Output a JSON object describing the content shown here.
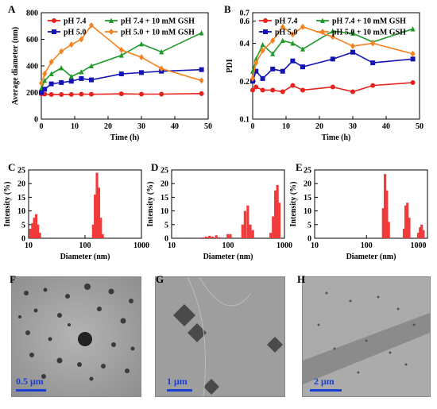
{
  "panels": {
    "A": "A",
    "B": "B",
    "C": "C",
    "D": "D",
    "E": "E",
    "F": "F",
    "G": "G",
    "H": "H"
  },
  "chart_data": [
    {
      "id": "A",
      "type": "line",
      "xlabel": "Time (h)",
      "ylabel": "Average diameter (nm)",
      "xlim": [
        0,
        50
      ],
      "ylim": [
        0,
        800
      ],
      "xticks": [
        0,
        10,
        20,
        30,
        40,
        50
      ],
      "yticks": [
        0,
        200,
        400,
        600,
        800
      ],
      "legend": "top",
      "series": [
        {
          "name": "pH 7.4",
          "color": "#e8221c",
          "marker": "circle",
          "x": [
            0,
            1,
            3,
            6,
            9,
            12,
            15,
            24,
            30,
            36,
            48
          ],
          "y": [
            190,
            188,
            185,
            185,
            186,
            188,
            187,
            190,
            188,
            188,
            192
          ]
        },
        {
          "name": "pH 7.4 + 10 mM GSH",
          "color": "#1f9a2a",
          "marker": "triangle",
          "x": [
            0,
            1,
            3,
            6,
            9,
            12,
            15,
            24,
            30,
            36,
            48
          ],
          "y": [
            230,
            290,
            340,
            385,
            320,
            355,
            400,
            480,
            565,
            505,
            648
          ]
        },
        {
          "name": "pH 5.0",
          "color": "#1414b4",
          "marker": "square",
          "x": [
            0,
            1,
            3,
            6,
            9,
            12,
            15,
            24,
            30,
            36,
            48
          ],
          "y": [
            200,
            225,
            265,
            275,
            285,
            305,
            295,
            340,
            350,
            360,
            372
          ]
        },
        {
          "name": "pH 5.0 + 10 mM GSH",
          "color": "#f58220",
          "marker": "diamond",
          "x": [
            0,
            1,
            3,
            6,
            9,
            12,
            15,
            24,
            30,
            36,
            48
          ],
          "y": [
            270,
            340,
            430,
            510,
            560,
            600,
            705,
            520,
            465,
            380,
            290
          ]
        }
      ]
    },
    {
      "id": "B",
      "type": "line",
      "xlabel": "Time (h)",
      "ylabel": "PDI",
      "xlim": [
        0,
        50
      ],
      "ylim": [
        0.1,
        0.7
      ],
      "yscale": "log",
      "xticks": [
        0,
        10,
        20,
        30,
        40,
        50
      ],
      "yticks": [
        0.1,
        0.2,
        0.4,
        0.6,
        0.7
      ],
      "legend": "top",
      "series": [
        {
          "name": "pH 7.4",
          "color": "#e8221c",
          "marker": "circle",
          "x": [
            0,
            1,
            3,
            6,
            9,
            12,
            15,
            24,
            30,
            36,
            48
          ],
          "y": [
            0.17,
            0.18,
            0.17,
            0.17,
            0.165,
            0.185,
            0.17,
            0.18,
            0.165,
            0.185,
            0.195
          ]
        },
        {
          "name": "pH 7.4 + 10 mM GSH",
          "color": "#1f9a2a",
          "marker": "triangle",
          "x": [
            0,
            1,
            3,
            6,
            9,
            12,
            15,
            24,
            30,
            36,
            48
          ],
          "y": [
            0.24,
            0.3,
            0.39,
            0.33,
            0.42,
            0.4,
            0.36,
            0.5,
            0.48,
            0.41,
            0.52
          ]
        },
        {
          "name": "pH 5.0",
          "color": "#1414b4",
          "marker": "square",
          "x": [
            0,
            1,
            3,
            6,
            9,
            12,
            15,
            24,
            30,
            36,
            48
          ],
          "y": [
            0.2,
            0.24,
            0.21,
            0.25,
            0.24,
            0.29,
            0.26,
            0.3,
            0.34,
            0.28,
            0.3
          ]
        },
        {
          "name": "pH 5.0 + 10 mM GSH",
          "color": "#f58220",
          "marker": "diamond",
          "x": [
            0,
            1,
            3,
            6,
            9,
            12,
            15,
            24,
            30,
            36,
            48
          ],
          "y": [
            0.21,
            0.28,
            0.35,
            0.42,
            0.54,
            0.47,
            0.54,
            0.45,
            0.38,
            0.4,
            0.33
          ]
        }
      ]
    },
    {
      "id": "C",
      "type": "bar",
      "xlabel": "Diameter (nm)",
      "ylabel": "Intensity (%)",
      "xscale": "log",
      "xlim": [
        10,
        1000
      ],
      "ylim": [
        0,
        25
      ],
      "xticks": [
        10,
        100,
        1000
      ],
      "yticks": [
        0,
        5,
        10,
        15,
        20,
        25
      ],
      "color": "#f23a3a",
      "bars": [
        {
          "x": 10.8,
          "y": 3.5
        },
        {
          "x": 11.7,
          "y": 5.5
        },
        {
          "x": 12.6,
          "y": 7.5
        },
        {
          "x": 13.6,
          "y": 8.8
        },
        {
          "x": 14.6,
          "y": 5.0
        },
        {
          "x": 15.8,
          "y": 2.0
        },
        {
          "x": 140,
          "y": 5.0
        },
        {
          "x": 151,
          "y": 16.0
        },
        {
          "x": 163,
          "y": 24.0
        },
        {
          "x": 176,
          "y": 18.5
        },
        {
          "x": 190,
          "y": 7.5
        },
        {
          "x": 205,
          "y": 1.5
        }
      ]
    },
    {
      "id": "D",
      "type": "bar",
      "xlabel": "Diameter (nm)",
      "ylabel": "Intensity (%)",
      "xscale": "log",
      "xlim": [
        10,
        1000
      ],
      "ylim": [
        0,
        25
      ],
      "xticks": [
        10,
        100,
        1000
      ],
      "yticks": [
        0,
        5,
        10,
        15,
        20,
        25
      ],
      "color": "#f23a3a",
      "bars": [
        {
          "x": 36,
          "y": 0.3
        },
        {
          "x": 41,
          "y": 0.6
        },
        {
          "x": 47,
          "y": 0.9
        },
        {
          "x": 53,
          "y": 0.6
        },
        {
          "x": 62,
          "y": 1.1
        },
        {
          "x": 70,
          "y": 0.4
        },
        {
          "x": 99,
          "y": 1.5
        },
        {
          "x": 110,
          "y": 1.5
        },
        {
          "x": 181,
          "y": 5.0
        },
        {
          "x": 200,
          "y": 10.0
        },
        {
          "x": 224,
          "y": 12.0
        },
        {
          "x": 248,
          "y": 5.0
        },
        {
          "x": 275,
          "y": 3.0
        },
        {
          "x": 570,
          "y": 2.0
        },
        {
          "x": 630,
          "y": 8.0
        },
        {
          "x": 690,
          "y": 17.5
        },
        {
          "x": 750,
          "y": 19.5
        },
        {
          "x": 810,
          "y": 13.0
        }
      ]
    },
    {
      "id": "E",
      "type": "bar",
      "xlabel": "Diameter (nm)",
      "ylabel": "Intensity (%)",
      "xscale": "log",
      "xlim": [
        10,
        1500
      ],
      "ylim": [
        0,
        25
      ],
      "xticks": [
        10,
        100,
        1000
      ],
      "yticks": [
        0,
        5,
        10,
        15,
        20,
        25
      ],
      "color": "#f23a3a",
      "bars": [
        {
          "x": 210,
          "y": 11.0
        },
        {
          "x": 228,
          "y": 23.5
        },
        {
          "x": 247,
          "y": 17.5
        },
        {
          "x": 268,
          "y": 6.0
        },
        {
          "x": 530,
          "y": 3.5
        },
        {
          "x": 570,
          "y": 12.0
        },
        {
          "x": 615,
          "y": 13.0
        },
        {
          "x": 665,
          "y": 7.5
        },
        {
          "x": 1000,
          "y": 2.0
        },
        {
          "x": 1080,
          "y": 4.0
        },
        {
          "x": 1160,
          "y": 5.0
        },
        {
          "x": 1250,
          "y": 3.0
        }
      ]
    }
  ],
  "micrographs": [
    {
      "id": "F",
      "scale": "0.5 μm"
    },
    {
      "id": "G",
      "scale": "1 μm"
    },
    {
      "id": "H",
      "scale": "2 μm"
    }
  ]
}
